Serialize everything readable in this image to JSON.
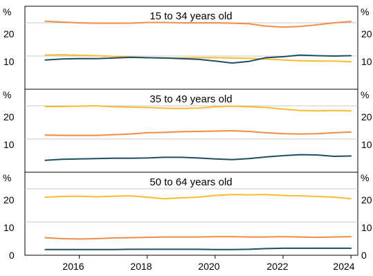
{
  "chart_data": {
    "type": "line",
    "x_ticks": [
      "2016",
      "2018",
      "2020",
      "2022",
      "2024"
    ],
    "xlim": [
      2014.4,
      2024.2
    ],
    "y_unit": "%",
    "y_ticks": [
      "10",
      "20"
    ],
    "ylim": [
      0,
      25
    ],
    "grid": true,
    "colors": {
      "orange": "#f28c46",
      "yellow": "#fbbb2d",
      "navy": "#1d4f64"
    },
    "panels": [
      {
        "title": "15 to 34 years old",
        "series": [
          {
            "color": "#f28c46",
            "x": [
              2015.0,
              2015.5,
              2016.0,
              2016.5,
              2017.0,
              2017.5,
              2018.0,
              2018.5,
              2019.0,
              2019.5,
              2020.0,
              2020.5,
              2021.0,
              2021.5,
              2022.0,
              2022.5,
              2023.0,
              2023.5,
              2024.0
            ],
            "y": [
              20.5,
              20.2,
              20.0,
              19.9,
              19.9,
              19.9,
              20.1,
              20.1,
              20.0,
              20.0,
              20.0,
              19.9,
              19.7,
              19.0,
              18.7,
              18.9,
              19.4,
              20.0,
              20.4
            ]
          },
          {
            "color": "#fbbb2d",
            "x": [
              2015.0,
              2015.5,
              2016.0,
              2016.5,
              2017.0,
              2017.5,
              2018.0,
              2018.5,
              2019.0,
              2019.5,
              2020.0,
              2020.5,
              2021.0,
              2021.5,
              2022.0,
              2022.5,
              2023.0,
              2023.5,
              2024.0
            ],
            "y": [
              10.3,
              10.4,
              10.2,
              10.1,
              9.9,
              9.7,
              9.5,
              9.4,
              9.4,
              9.5,
              9.5,
              9.4,
              9.3,
              9.1,
              8.8,
              8.6,
              8.5,
              8.5,
              8.3
            ]
          },
          {
            "color": "#1d4f64",
            "x": [
              2015.0,
              2015.5,
              2016.0,
              2016.5,
              2017.0,
              2017.5,
              2018.0,
              2018.5,
              2019.0,
              2019.5,
              2020.0,
              2020.5,
              2021.0,
              2021.5,
              2022.0,
              2022.5,
              2023.0,
              2023.5,
              2024.0
            ],
            "y": [
              8.8,
              9.1,
              9.2,
              9.2,
              9.4,
              9.6,
              9.5,
              9.4,
              9.2,
              9.0,
              8.5,
              7.9,
              8.4,
              9.5,
              9.8,
              10.3,
              10.1,
              10.0,
              10.1
            ]
          }
        ]
      },
      {
        "title": "35 to 49 years old",
        "series": [
          {
            "color": "#fbbb2d",
            "x": [
              2015.0,
              2015.5,
              2016.0,
              2016.5,
              2017.0,
              2017.5,
              2018.0,
              2018.5,
              2019.0,
              2019.5,
              2020.0,
              2020.5,
              2021.0,
              2021.5,
              2022.0,
              2022.5,
              2023.0,
              2023.5,
              2024.0
            ],
            "y": [
              19.8,
              19.8,
              19.9,
              20.0,
              19.7,
              19.6,
              19.5,
              19.3,
              19.2,
              19.3,
              19.7,
              19.9,
              19.7,
              19.5,
              19.0,
              18.6,
              18.5,
              18.6,
              18.5
            ]
          },
          {
            "color": "#f28c46",
            "x": [
              2015.0,
              2015.5,
              2016.0,
              2016.5,
              2017.0,
              2017.5,
              2018.0,
              2018.5,
              2019.0,
              2019.5,
              2020.0,
              2020.5,
              2021.0,
              2021.5,
              2022.0,
              2022.5,
              2023.0,
              2023.5,
              2024.0
            ],
            "y": [
              11.2,
              11.1,
              11.1,
              11.1,
              11.3,
              11.5,
              11.9,
              12.0,
              12.2,
              12.3,
              12.4,
              12.5,
              12.3,
              11.9,
              11.6,
              11.5,
              11.6,
              11.9,
              12.1
            ]
          },
          {
            "color": "#1d4f64",
            "x": [
              2015.0,
              2015.5,
              2016.0,
              2016.5,
              2017.0,
              2017.5,
              2018.0,
              2018.5,
              2019.0,
              2019.5,
              2020.0,
              2020.5,
              2021.0,
              2021.5,
              2022.0,
              2022.5,
              2023.0,
              2023.5,
              2024.0
            ],
            "y": [
              3.6,
              3.9,
              4.0,
              4.1,
              4.2,
              4.2,
              4.3,
              4.5,
              4.5,
              4.3,
              4.0,
              3.8,
              4.1,
              4.6,
              5.0,
              5.3,
              5.2,
              4.8,
              4.9
            ]
          }
        ]
      },
      {
        "title": "50 to 64 years old",
        "series": [
          {
            "color": "#fbbb2d",
            "x": [
              2015.0,
              2015.5,
              2016.0,
              2016.5,
              2017.0,
              2017.5,
              2018.0,
              2018.5,
              2019.0,
              2019.5,
              2020.0,
              2020.5,
              2021.0,
              2021.5,
              2022.0,
              2022.5,
              2023.0,
              2023.5,
              2024.0
            ],
            "y": [
              17.5,
              17.7,
              17.8,
              17.6,
              17.8,
              17.9,
              17.5,
              17.0,
              17.3,
              17.5,
              18.0,
              18.3,
              18.2,
              18.3,
              18.0,
              17.9,
              17.7,
              17.5,
              17.0
            ]
          },
          {
            "color": "#f28c46",
            "x": [
              2015.0,
              2015.5,
              2016.0,
              2016.5,
              2017.0,
              2017.5,
              2018.0,
              2018.5,
              2019.0,
              2019.5,
              2020.0,
              2020.5,
              2021.0,
              2021.5,
              2022.0,
              2022.5,
              2023.0,
              2023.5,
              2024.0
            ],
            "y": [
              5.3,
              5.0,
              4.9,
              5.0,
              5.2,
              5.3,
              5.4,
              5.5,
              5.5,
              5.5,
              5.6,
              5.6,
              5.5,
              5.5,
              5.6,
              5.5,
              5.4,
              5.5,
              5.6
            ]
          },
          {
            "color": "#1d4f64",
            "x": [
              2015.0,
              2015.5,
              2016.0,
              2016.5,
              2017.0,
              2017.5,
              2018.0,
              2018.5,
              2019.0,
              2019.5,
              2020.0,
              2020.5,
              2021.0,
              2021.5,
              2022.0,
              2022.5,
              2023.0,
              2023.5,
              2024.0
            ],
            "y": [
              1.7,
              1.7,
              1.7,
              1.7,
              1.7,
              1.8,
              1.8,
              1.8,
              1.8,
              1.8,
              1.7,
              1.7,
              1.8,
              2.0,
              2.1,
              2.1,
              2.1,
              2.1,
              2.1
            ]
          }
        ]
      }
    ]
  }
}
